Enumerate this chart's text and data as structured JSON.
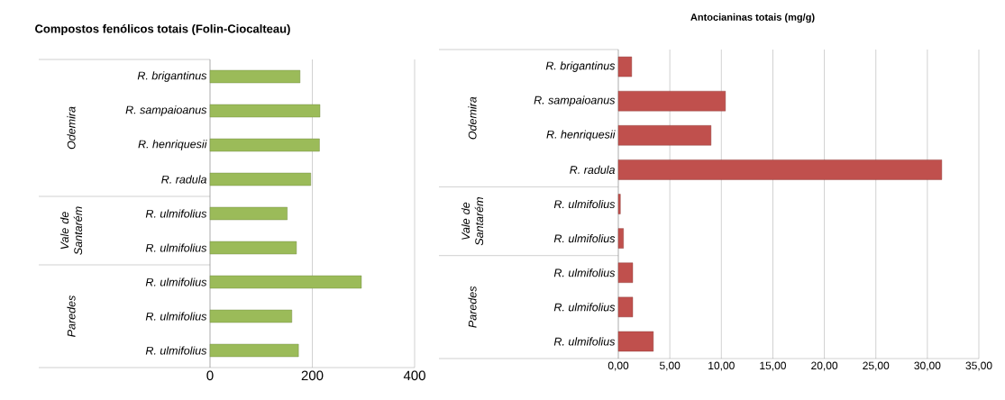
{
  "chart_data": [
    {
      "type": "bar",
      "orientation": "horizontal",
      "title": "Compostos fenólicos totais (Folin-Ciocalteau)",
      "categories": [
        "R. brigantinus",
        "R. sampaioanus",
        "R. henriquesii",
        "R. radula",
        "R. ulmifolius",
        "R. ulmifolius",
        "R. ulmifolius",
        "R. ulmifolius",
        "R. ulmifolius"
      ],
      "values": [
        176,
        215,
        214,
        197,
        151,
        169,
        296,
        160,
        173
      ],
      "color": "#9bbb59",
      "xlim": [
        0,
        400
      ],
      "xticks": [
        0,
        200,
        400
      ],
      "grid": "x",
      "annotations": [
        "Odemira",
        "Vale de Santarém",
        "Paredes"
      ]
    },
    {
      "type": "bar",
      "orientation": "horizontal",
      "title": "Antocianinas totais  (mg/g)",
      "categories": [
        "R. brigantinus",
        "R. sampaioanus",
        "R. henriquesii",
        "R. radula",
        "R. ulmifolius",
        "R. ulmifolius",
        "R. ulmifolius",
        "R. ulmifolius",
        "R. ulmifolius"
      ],
      "values": [
        1.3,
        10.4,
        9.0,
        31.4,
        0.2,
        0.5,
        1.4,
        1.4,
        3.4
      ],
      "color": "#c0504d",
      "xlim": [
        0,
        35
      ],
      "xticks": [
        {
          "value": 0,
          "label": "0,00"
        },
        {
          "value": 5,
          "label": "5,00"
        },
        {
          "value": 10,
          "label": "10,00"
        },
        {
          "value": 15,
          "label": "15,00"
        },
        {
          "value": 20,
          "label": "20,00"
        },
        {
          "value": 25,
          "label": "25,00"
        },
        {
          "value": 30,
          "label": "30,00"
        },
        {
          "value": 35,
          "label": "35,00"
        }
      ],
      "grid": "x",
      "annotations": [
        "Odemira",
        "Vale de Santarém",
        "Paredes"
      ]
    }
  ]
}
